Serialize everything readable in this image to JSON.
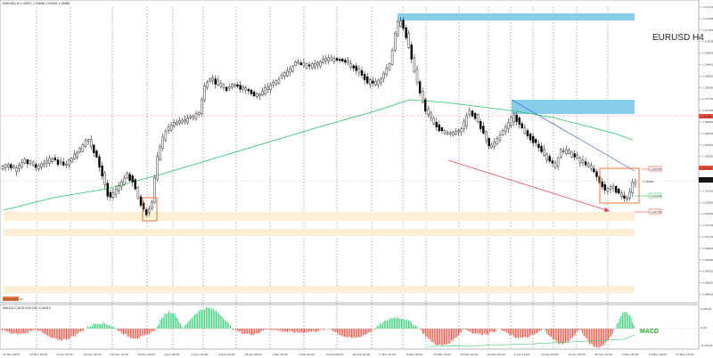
{
  "window": {
    "header": "EURUSD,H4 1.05631 1.05696 1.05585 1.05660",
    "title": "EURUSD H4"
  },
  "indicators": {
    "macd_header": "MACD(12,26,9) 0.00126 -0.00015",
    "macd_label": "MACD",
    "orange_box_label": "0.00 0.00 0.00"
  },
  "price_axis": {
    "labels": [
      "1.12170",
      "1.11605",
      "1.11055",
      "1.10505",
      "1.09955",
      "1.09400",
      "1.08850",
      "1.08300",
      "1.07750",
      "1.07200",
      "1.06650",
      "1.06100",
      "1.05550",
      "1.05000",
      "1.04450",
      "1.03900",
      "1.03350",
      "1.02800",
      "1.02250",
      "1.01700",
      "1.01150",
      "1.00600",
      "1.00050",
      "0.99500",
      "0.98950",
      "0.98400"
    ],
    "current_price": "1.05660",
    "markers": [
      {
        "text": "1.06950",
        "color": "#e74c3c"
      },
      {
        "text": "1.05700",
        "color": "#e74c3c"
      },
      {
        "text": "1.05660",
        "color": "#111111"
      },
      {
        "text": "1.05260",
        "color": "#2ecc71"
      },
      {
        "text": "1.04750",
        "color": "#e74c3c"
      }
    ],
    "entry_tag": "1.05600"
  },
  "macd_axis": {
    "labels": [
      "0.00150",
      "0.00",
      "-0.00134"
    ]
  },
  "time_axis": {
    "labels": [
      "20 Nov 2023",
      "27 Nov 16:00",
      "5 Dec 00:00",
      "12 Dec 08:00",
      "19 Dec 16:00",
      "28 Dec 00:00",
      "4 Jan 08:00",
      "11 Jan 16:00",
      "19 Jan 00:00",
      "26 Jan 08:00",
      "2 Feb 16:00",
      "9 Feb 00:00",
      "16 Feb 08:00",
      "23 Feb 16:00",
      "1 Mar 00:00",
      "8 Mar 08:00",
      "15 Mar 16:00",
      "22 Mar 00:00",
      "29 Mar 08:00",
      "5 Apr 16:00",
      "12 Apr 00:00",
      "19 Apr 08:00",
      "26 Apr 16:00",
      "3 May 00:00",
      "10 May 08:00",
      "17 May 16:00"
    ]
  },
  "bottom_panel_label": "0.00 0.00 0.00",
  "colors": {
    "zone_blue": "#87CEEB",
    "zone_sand": "#FDEFD4",
    "ma_green": "#22c55e",
    "trend_blue": "#3b5fd9",
    "arrow_red": "#e63946",
    "box_orange": "#e8743b",
    "bull": "#ffffff",
    "bear": "#000000",
    "macd_pos": "#2ecc71",
    "macd_neg": "#e74c3c"
  },
  "chart_data": {
    "type": "candlestick",
    "symbol": "EURUSD",
    "timeframe": "H4",
    "y_range": [
      0.984,
      1.1217
    ],
    "candles_approx": "OHLC series drawn procedurally to follow trend path",
    "macd_histogram": "alternating positive/negative waves"
  }
}
